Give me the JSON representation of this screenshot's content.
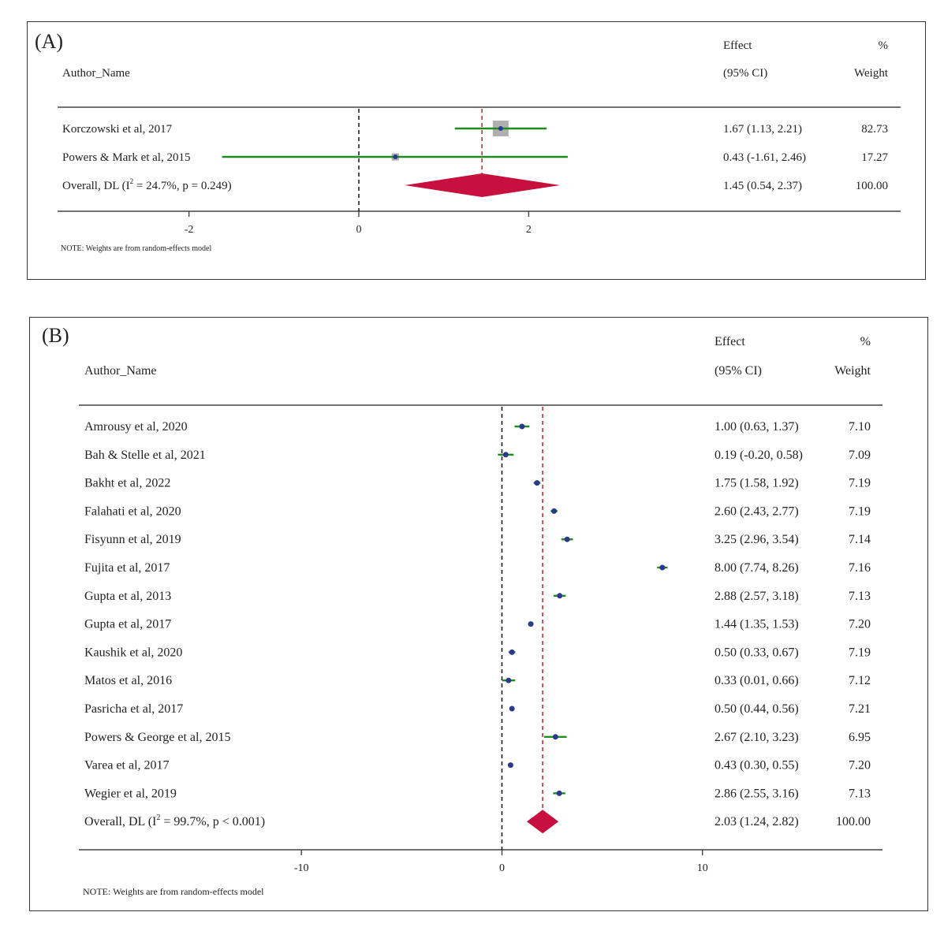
{
  "chart_data": [
    {
      "type": "forest",
      "panel_label": "(A)",
      "header": {
        "study": "Author_Name",
        "effect_line1": "Effect",
        "effect_line2": "(95% CI)",
        "weight_line1": "%",
        "weight_line2": "Weight"
      },
      "studies": [
        {
          "name": "Korczowski et al, 2017",
          "effect": 1.67,
          "lo": 1.13,
          "hi": 2.21,
          "effect_text": "1.67 (1.13, 2.21)",
          "weight_text": "82.73",
          "weight": 82.73
        },
        {
          "name": "Powers & Mark et al, 2015",
          "effect": 0.43,
          "lo": -1.61,
          "hi": 2.46,
          "effect_text": "0.43 (-1.61, 2.46)",
          "weight_text": "17.27",
          "weight": 17.27
        }
      ],
      "overall": {
        "label_pre": "Overall, DL (I",
        "label_sup": "2",
        "label_post": " = 24.7%, p = 0.249)",
        "effect": 1.45,
        "lo": 0.54,
        "hi": 2.37,
        "effect_text": "1.45 (0.54, 2.37)",
        "weight_text": "100.00"
      },
      "xticks": [
        -2,
        0,
        2
      ],
      "xtick_labels": [
        "-2",
        "0",
        "2"
      ],
      "xlim": [
        -3.9,
        2.6
      ],
      "note": "NOTE: Weights are from random-effects model",
      "colors": {
        "ci": "#1e8c1e",
        "point": "#2a3a8a",
        "diamond": "#c8103e",
        "weight_box": "#b0b0b0",
        "null_line": "#111111",
        "overall_line": "#b01a1a"
      }
    },
    {
      "type": "forest",
      "panel_label": "(B)",
      "header": {
        "study": "Author_Name",
        "effect_line1": "Effect",
        "effect_line2": "(95% CI)",
        "weight_line1": "%",
        "weight_line2": "Weight"
      },
      "studies": [
        {
          "name": "Amrousy et al, 2020",
          "effect": 1.0,
          "lo": 0.63,
          "hi": 1.37,
          "effect_text": "1.00 (0.63, 1.37)",
          "weight_text": "7.10",
          "weight": 7.1
        },
        {
          "name": "Bah & Stelle et al, 2021",
          "effect": 0.19,
          "lo": -0.2,
          "hi": 0.58,
          "effect_text": "0.19 (-0.20, 0.58)",
          "weight_text": "7.09",
          "weight": 7.09
        },
        {
          "name": "Bakht et al, 2022",
          "effect": 1.75,
          "lo": 1.58,
          "hi": 1.92,
          "effect_text": "1.75 (1.58, 1.92)",
          "weight_text": "7.19",
          "weight": 7.19
        },
        {
          "name": "Falahati et al, 2020",
          "effect": 2.6,
          "lo": 2.43,
          "hi": 2.77,
          "effect_text": "2.60 (2.43, 2.77)",
          "weight_text": "7.19",
          "weight": 7.19
        },
        {
          "name": "Fisyunn et al, 2019",
          "effect": 3.25,
          "lo": 2.96,
          "hi": 3.54,
          "effect_text": "3.25 (2.96, 3.54)",
          "weight_text": "7.14",
          "weight": 7.14
        },
        {
          "name": "Fujita et al, 2017",
          "effect": 8.0,
          "lo": 7.74,
          "hi": 8.26,
          "effect_text": "8.00 (7.74, 8.26)",
          "weight_text": "7.16",
          "weight": 7.16
        },
        {
          "name": "Gupta et al, 2013",
          "effect": 2.88,
          "lo": 2.57,
          "hi": 3.18,
          "effect_text": "2.88 (2.57, 3.18)",
          "weight_text": "7.13",
          "weight": 7.13
        },
        {
          "name": "Gupta et al, 2017",
          "effect": 1.44,
          "lo": 1.35,
          "hi": 1.53,
          "effect_text": "1.44 (1.35, 1.53)",
          "weight_text": "7.20",
          "weight": 7.2
        },
        {
          "name": "Kaushik et al, 2020",
          "effect": 0.5,
          "lo": 0.33,
          "hi": 0.67,
          "effect_text": "0.50 (0.33, 0.67)",
          "weight_text": "7.19",
          "weight": 7.19
        },
        {
          "name": "Matos et al, 2016",
          "effect": 0.33,
          "lo": 0.01,
          "hi": 0.66,
          "effect_text": "0.33 (0.01, 0.66)",
          "weight_text": "7.12",
          "weight": 7.12
        },
        {
          "name": "Pasricha et al, 2017",
          "effect": 0.5,
          "lo": 0.44,
          "hi": 0.56,
          "effect_text": "0.50 (0.44, 0.56)",
          "weight_text": "7.21",
          "weight": 7.21
        },
        {
          "name": "Powers & George et al, 2015",
          "effect": 2.67,
          "lo": 2.1,
          "hi": 3.23,
          "effect_text": "2.67 (2.10, 3.23)",
          "weight_text": "6.95",
          "weight": 6.95
        },
        {
          "name": "Varea et al, 2017",
          "effect": 0.43,
          "lo": 0.3,
          "hi": 0.55,
          "effect_text": "0.43 (0.30, 0.55)",
          "weight_text": "7.20",
          "weight": 7.2
        },
        {
          "name": "Wegier et al, 2019",
          "effect": 2.86,
          "lo": 2.55,
          "hi": 3.16,
          "effect_text": "2.86 (2.55, 3.16)",
          "weight_text": "7.13",
          "weight": 7.13
        }
      ],
      "overall": {
        "label_pre": "Overall, DL (I",
        "label_sup": "2",
        "label_post": " = 99.7%, p < 0.001)",
        "effect": 2.03,
        "lo": 1.24,
        "hi": 2.82,
        "effect_text": "2.03 (1.24, 2.82)",
        "weight_text": "100.00"
      },
      "xticks": [
        -10,
        0,
        10
      ],
      "xtick_labels": [
        "-10",
        "0",
        "10"
      ],
      "xlim": [
        -21.1,
        18.9
      ],
      "note": "NOTE: Weights are from random-effects model",
      "colors": {
        "ci": "#1e8c1e",
        "point": "#2a3a8a",
        "diamond": "#c8103e",
        "weight_box": "#b0b0b0",
        "null_line": "#111111",
        "overall_line": "#b01a1a"
      }
    }
  ]
}
